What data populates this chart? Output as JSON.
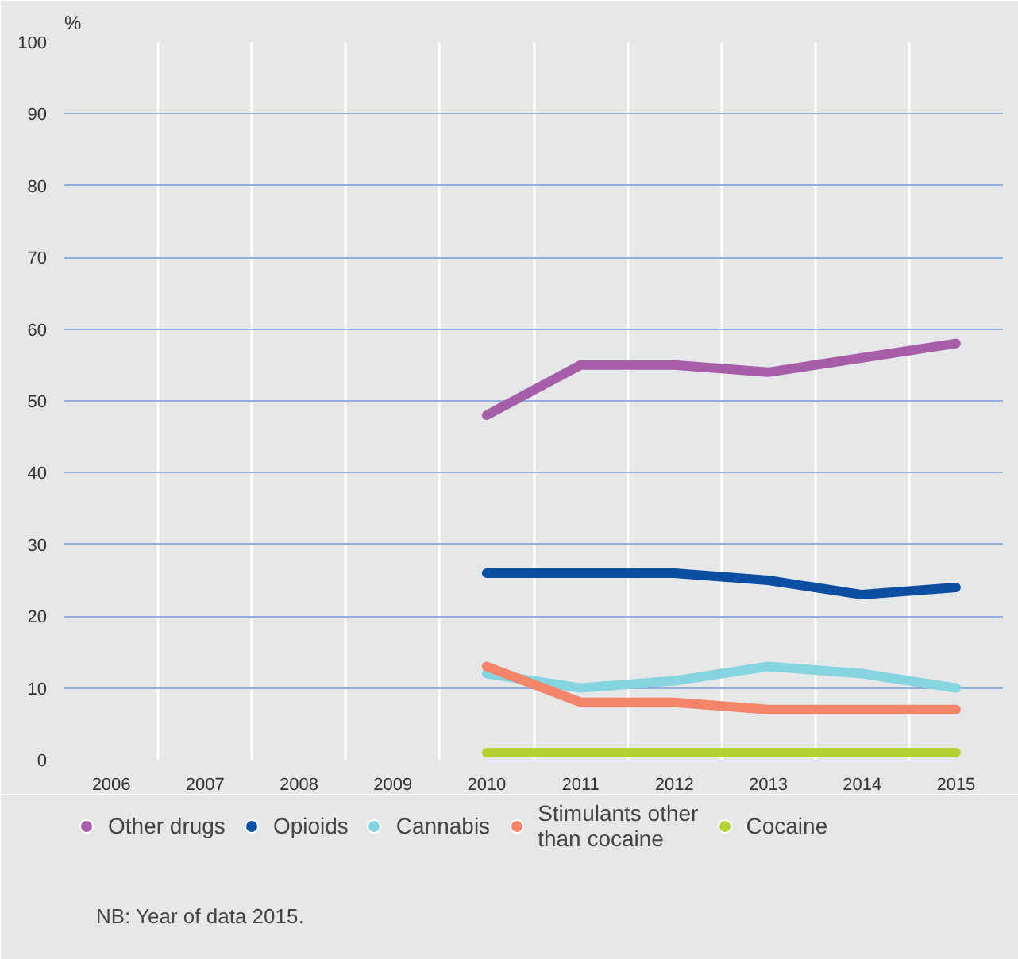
{
  "chart_data": {
    "type": "line",
    "ylabel": "%",
    "categories": [
      "2006",
      "2007",
      "2008",
      "2009",
      "2010",
      "2011",
      "2012",
      "2013",
      "2014",
      "2015"
    ],
    "series": [
      {
        "name": "Other drugs",
        "color": "#a65ea8",
        "values": [
          null,
          null,
          null,
          null,
          48,
          55,
          55,
          54,
          56,
          58
        ]
      },
      {
        "name": "Opioids",
        "color": "#0b4ea2",
        "values": [
          null,
          null,
          null,
          null,
          26,
          26,
          26,
          25,
          23,
          24
        ]
      },
      {
        "name": "Cannabis",
        "color": "#86d4e0",
        "values": [
          null,
          null,
          null,
          null,
          12,
          10,
          11,
          13,
          12,
          10
        ]
      },
      {
        "name": "Stimulants other than cocaine",
        "color": "#f4846a",
        "values": [
          null,
          null,
          null,
          null,
          13,
          8,
          8,
          7,
          7,
          7
        ]
      },
      {
        "name": "Cocaine",
        "color": "#b2d235",
        "values": [
          null,
          null,
          null,
          null,
          1,
          1,
          1,
          1,
          1,
          1
        ]
      }
    ],
    "ylim": [
      0,
      100
    ],
    "yticks": [
      0,
      10,
      20,
      30,
      40,
      50,
      60,
      70,
      80,
      90,
      100
    ],
    "grid": true,
    "legend": "bottom",
    "marker": "none",
    "line_style": "solid",
    "annotations": [
      "NB: Year of data 2015."
    ]
  }
}
